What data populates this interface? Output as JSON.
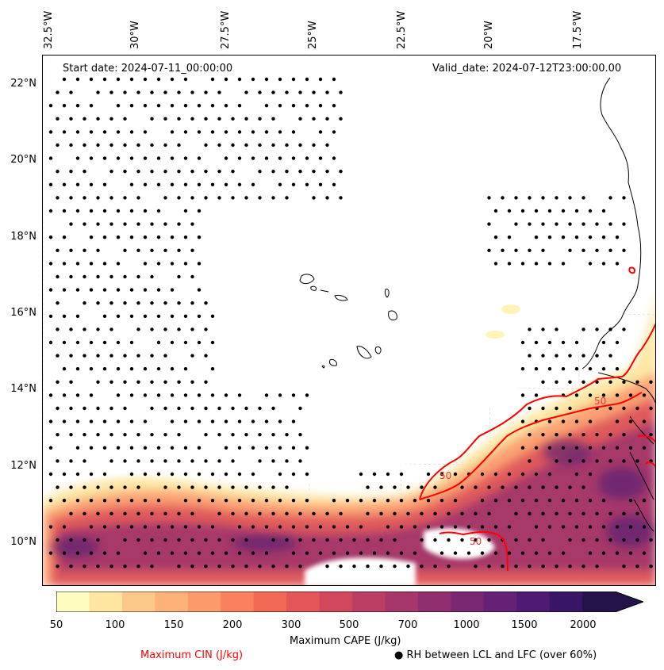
{
  "header": {
    "start_date": "Start date: 2024-07-11_00:00:00",
    "valid_date": "Valid_date: 2024-07-12T23:00:00.00"
  },
  "longitude_labels": [
    "32.5°W",
    "30°W",
    "27.5°W",
    "25°W",
    "22.5°W",
    "20°W",
    "17.5°W"
  ],
  "latitude_labels": [
    "22°N",
    "20°N",
    "18°N",
    "16°N",
    "14°N",
    "12°N",
    "10°N"
  ],
  "colorbar": {
    "title": "Maximum CAPE (J/kg)",
    "ticks": [
      "50",
      "100",
      "150",
      "200",
      "300",
      "500",
      "700",
      "1000",
      "1500",
      "2000"
    ],
    "colors": [
      "#fffcc0",
      "#fee6a0",
      "#fdc98a",
      "#fdb27a",
      "#fb9b6b",
      "#f8825f",
      "#f26a56",
      "#e45658",
      "#d2475c",
      "#bd3e63",
      "#a6376a",
      "#902f6f",
      "#7b2873",
      "#652176",
      "#4e1a74",
      "#381566",
      "#24124a"
    ]
  },
  "legend": {
    "cin_label": "Maximum CIN (J/kg)",
    "cin_color": "#ff0000",
    "rh_label": "RH between LCL and LFC (over 60%)",
    "rh_marker": "●"
  },
  "contour_labels": [
    "50",
    "50",
    "50"
  ]
}
